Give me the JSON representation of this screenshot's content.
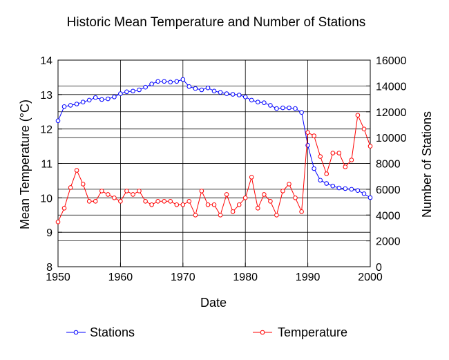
{
  "chart_data": {
    "type": "line",
    "title": "Historic Mean Temperature and Number of Stations",
    "xlabel": "Date",
    "ylabel_left": "Mean Temperature (°C)",
    "ylabel_right": "Number of Stations",
    "xlim": [
      1950,
      2000
    ],
    "ylim_left": [
      8,
      14
    ],
    "ylim_right": [
      0,
      16000
    ],
    "x_ticks": [
      "1950",
      "1960",
      "1970",
      "1980",
      "1990",
      "2000"
    ],
    "y_left_ticks": [
      "8",
      "9",
      "10",
      "11",
      "12",
      "13",
      "14"
    ],
    "y_right_ticks": [
      "0",
      "2000",
      "4000",
      "6000",
      "8000",
      "10000",
      "12000",
      "14000",
      "16000"
    ],
    "grid": true,
    "legend_position": "bottom",
    "series": [
      {
        "name": "Stations",
        "axis": "right",
        "color": "#0000ff",
        "marker": "open-circle",
        "x": [
          1950,
          1951,
          1952,
          1953,
          1954,
          1955,
          1956,
          1957,
          1958,
          1959,
          1960,
          1961,
          1962,
          1963,
          1964,
          1965,
          1966,
          1967,
          1968,
          1969,
          1970,
          1971,
          1972,
          1973,
          1974,
          1975,
          1976,
          1977,
          1978,
          1979,
          1980,
          1981,
          1982,
          1983,
          1984,
          1985,
          1986,
          1987,
          1988,
          1989,
          1990,
          1991,
          1992,
          1993,
          1994,
          1995,
          1996,
          1997,
          1998,
          1999,
          2000
        ],
        "values": [
          11300,
          12400,
          12500,
          12600,
          12750,
          12900,
          13100,
          12950,
          13000,
          13150,
          13400,
          13550,
          13600,
          13700,
          13900,
          14150,
          14350,
          14350,
          14300,
          14350,
          14500,
          13950,
          13800,
          13700,
          13850,
          13600,
          13500,
          13400,
          13350,
          13300,
          13150,
          12900,
          12750,
          12700,
          12500,
          12250,
          12300,
          12300,
          12250,
          11950,
          9400,
          7600,
          6700,
          6450,
          6250,
          6100,
          6050,
          6000,
          5900,
          5650,
          5350
        ]
      },
      {
        "name": "Temperature",
        "axis": "left",
        "color": "#ff0000",
        "marker": "open-circle",
        "x": [
          1950,
          1951,
          1952,
          1953,
          1954,
          1955,
          1956,
          1957,
          1958,
          1959,
          1960,
          1961,
          1962,
          1963,
          1964,
          1965,
          1966,
          1967,
          1968,
          1969,
          1970,
          1971,
          1972,
          1973,
          1974,
          1975,
          1976,
          1977,
          1978,
          1979,
          1980,
          1981,
          1982,
          1983,
          1984,
          1985,
          1986,
          1987,
          1988,
          1989,
          1990,
          1991,
          1992,
          1993,
          1994,
          1995,
          1996,
          1997,
          1998,
          1999,
          2000
        ],
        "values": [
          9.3,
          9.7,
          10.3,
          10.8,
          10.4,
          9.9,
          9.9,
          10.2,
          10.1,
          10.0,
          9.9,
          10.2,
          10.1,
          10.2,
          9.9,
          9.8,
          9.9,
          9.9,
          9.9,
          9.8,
          9.8,
          9.9,
          9.5,
          10.2,
          9.8,
          9.8,
          9.5,
          10.1,
          9.6,
          9.8,
          10.0,
          10.6,
          9.7,
          10.1,
          9.9,
          9.5,
          10.2,
          10.4,
          10.0,
          9.6,
          11.9,
          11.8,
          11.2,
          10.7,
          11.3,
          11.3,
          10.9,
          11.1,
          12.4,
          12.0,
          11.5
        ]
      }
    ]
  }
}
